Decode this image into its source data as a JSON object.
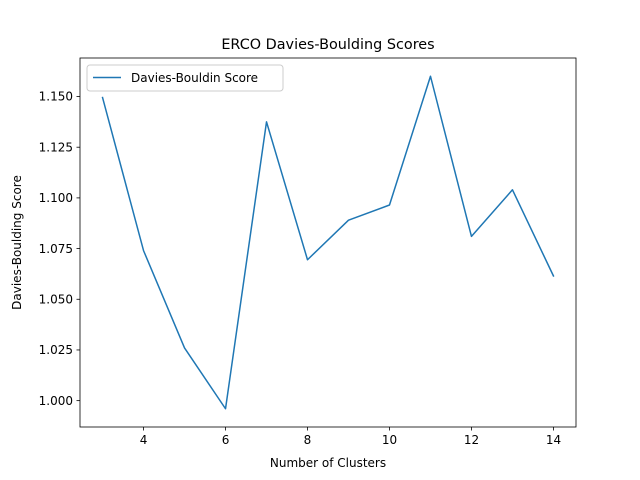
{
  "chart_data": {
    "type": "line",
    "title": "ERCO Davies-Boulding Scores",
    "xlabel": "Number of Clusters",
    "ylabel": "Davies-Boulding Score",
    "xlim": [
      2.45,
      14.55
    ],
    "ylim": [
      0.987,
      1.169
    ],
    "xticks": [
      4,
      6,
      8,
      10,
      12,
      14
    ],
    "xtick_labels": [
      "4",
      "6",
      "8",
      "10",
      "12",
      "14"
    ],
    "yticks": [
      1.0,
      1.025,
      1.05,
      1.075,
      1.1,
      1.125,
      1.15
    ],
    "ytick_labels": [
      "1.000",
      "1.025",
      "1.050",
      "1.075",
      "1.100",
      "1.125",
      "1.150"
    ],
    "grid": false,
    "legend_position": "upper-left",
    "series": [
      {
        "name": "Davies-Bouldin Score",
        "color": "#1f77b4",
        "x": [
          3,
          4,
          5,
          6,
          7,
          8,
          9,
          10,
          11,
          12,
          13,
          14
        ],
        "y": [
          1.1495,
          1.074,
          1.026,
          0.996,
          1.1375,
          1.0695,
          1.089,
          1.0965,
          1.16,
          1.081,
          1.104,
          1.0615
        ]
      }
    ]
  }
}
